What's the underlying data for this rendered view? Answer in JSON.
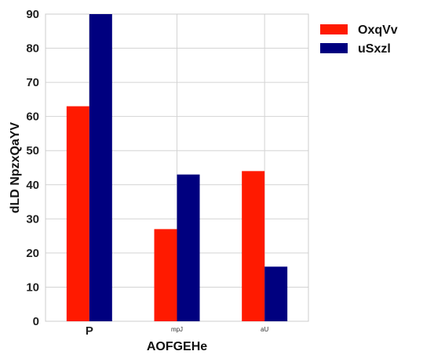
{
  "chart_data": {
    "type": "bar",
    "title": "",
    "xlabel": "AOFGEHe",
    "ylabel": "dLD NpzxQaYV",
    "categories": [
      "P",
      "mpJ",
      "aU"
    ],
    "category_label_sizes": [
      "large",
      "small",
      "small"
    ],
    "series": [
      {
        "name": "OxqVv",
        "color": "#ff1a00",
        "values": [
          63,
          27,
          44
        ]
      },
      {
        "name": "uSxzl",
        "color": "#00007f",
        "values": [
          90,
          43,
          16
        ]
      }
    ],
    "ylim": [
      0,
      90
    ],
    "yticks": [
      0,
      10,
      20,
      30,
      40,
      50,
      60,
      70,
      80,
      90
    ],
    "grid": true,
    "legend_position": "top-right-outside"
  }
}
